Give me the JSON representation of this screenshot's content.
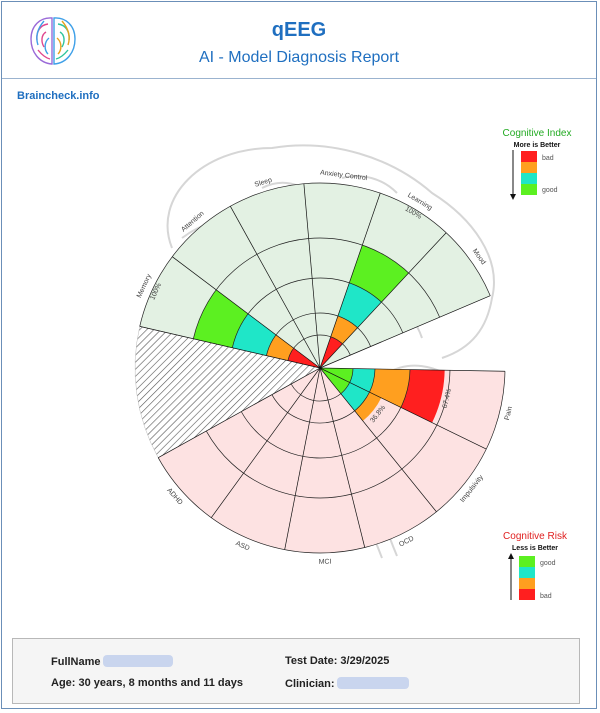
{
  "header": {
    "title": "qEEG",
    "subtitle": "AI - Model Diagnosis Report",
    "site": "Braincheck.info"
  },
  "legend_index": {
    "title": "Cognitive Index",
    "subtitle": "More is Better",
    "bad": "bad",
    "good": "good"
  },
  "legend_risk": {
    "title": "Cognitive Risk",
    "subtitle": "Less is Better",
    "good": "good",
    "bad": "bad"
  },
  "colors": {
    "red": "#ff1f1f",
    "orange": "#ff9f1f",
    "cyan": "#1fe6c8",
    "green": "#5cf021",
    "index_bg": "#e3f1e3",
    "risk_bg": "#fde2e2",
    "title_index": "#22aa22",
    "title_risk": "#e02020"
  },
  "chart_data": {
    "type": "polar-bar",
    "scale": [
      0,
      100
    ],
    "cognitive_index": [
      {
        "label": "Memory",
        "value": 100,
        "value_label": "100%"
      },
      {
        "label": "Attention",
        "value": 0,
        "value_label": ""
      },
      {
        "label": "Sleep",
        "value": 0,
        "value_label": ""
      },
      {
        "label": "Anxiety Control",
        "value": 0,
        "value_label": ""
      },
      {
        "label": "Learning",
        "value": 100,
        "value_label": "100%"
      },
      {
        "label": "Mood",
        "value": 0,
        "value_label": ""
      }
    ],
    "cognitive_risk": [
      {
        "label": "ADHD",
        "value": 0,
        "value_label": ""
      },
      {
        "label": "ASD",
        "value": 0,
        "value_label": ""
      },
      {
        "label": "MCI",
        "value": 0,
        "value_label": ""
      },
      {
        "label": "OCD",
        "value": 0,
        "value_label": ""
      },
      {
        "label": "Impulsivity",
        "value": 36.8,
        "value_label": "36.8%"
      },
      {
        "label": "Pain",
        "value": 67.4,
        "value_label": "67.4%"
      }
    ]
  },
  "footer": {
    "fullname_label": "FullName",
    "age": "Age: 30 years, 8 months and 11 days",
    "test_date": "Test Date: 3/29/2025",
    "clinician_label": "Clinician:"
  }
}
